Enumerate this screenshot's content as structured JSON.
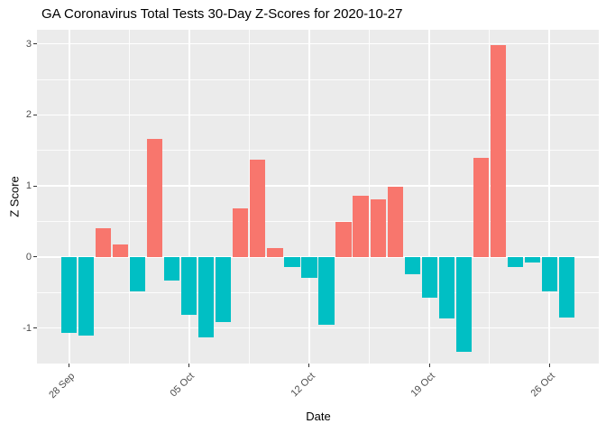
{
  "title": "GA Coronavirus Total Tests 30-Day Z-Scores for 2020-10-27",
  "chart_data": {
    "type": "bar",
    "title": "GA Coronavirus Total Tests 30-Day Z-Scores for 2020-10-27",
    "xlabel": "Date",
    "ylabel": "Z Score",
    "categories": [
      "2020-09-28",
      "2020-09-29",
      "2020-09-30",
      "2020-10-01",
      "2020-10-02",
      "2020-10-03",
      "2020-10-04",
      "2020-10-05",
      "2020-10-06",
      "2020-10-07",
      "2020-10-08",
      "2020-10-09",
      "2020-10-10",
      "2020-10-11",
      "2020-10-12",
      "2020-10-13",
      "2020-10-14",
      "2020-10-15",
      "2020-10-16",
      "2020-10-17",
      "2020-10-18",
      "2020-10-19",
      "2020-10-20",
      "2020-10-21",
      "2020-10-22",
      "2020-10-23",
      "2020-10-24",
      "2020-10-25",
      "2020-10-26",
      "2020-10-27"
    ],
    "values": [
      -1.07,
      -1.11,
      0.41,
      0.18,
      -0.48,
      1.66,
      -0.33,
      -0.81,
      -1.13,
      -0.92,
      0.68,
      1.37,
      0.12,
      -0.14,
      -0.29,
      -0.95,
      0.49,
      0.86,
      0.81,
      0.99,
      -0.24,
      -0.57,
      -0.86,
      -1.33,
      1.4,
      2.99,
      -0.14,
      -0.08,
      -0.49,
      -0.85
    ],
    "x_ticks": [
      {
        "label": "28 Sep",
        "day_index": 0
      },
      {
        "label": "05 Oct",
        "day_index": 7
      },
      {
        "label": "12 Oct",
        "day_index": 14
      },
      {
        "label": "19 Oct",
        "day_index": 21
      },
      {
        "label": "26 Oct",
        "day_index": 28
      }
    ],
    "x_minor_day_index": [
      3.5,
      10.5,
      17.5,
      24.5
    ],
    "y_ticks": [
      3,
      2,
      1,
      0,
      -1
    ],
    "y_minor": [
      2.5,
      1.5,
      0.5,
      -0.5,
      -1.5
    ],
    "ylim": [
      -1.5,
      3.2
    ],
    "xlim_day_index": [
      -1.88,
      30.88
    ],
    "bar_width_days": 0.9,
    "grid": true,
    "legend_position": "none",
    "colors": {
      "positive_bar": "#F8766D",
      "negative_bar": "#00BFC4",
      "panel_background": "#EBEBEB",
      "gridline": "#FFFFFF",
      "tick_text": "#4D4D4D",
      "axis_title_text": "#000000",
      "title_text": "#000000"
    }
  }
}
